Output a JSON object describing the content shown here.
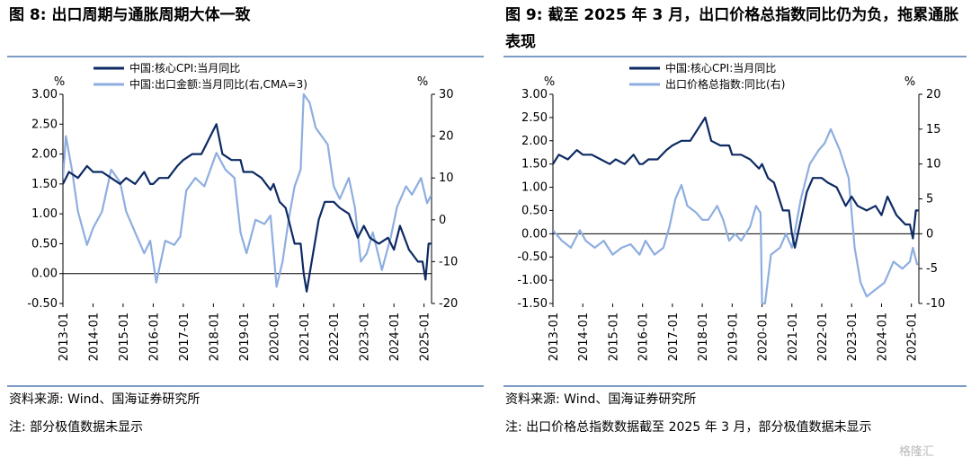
{
  "left": {
    "title": "图 8:  出口周期与通胀周期大体一致",
    "source": "资料来源:  Wind、国海证券研究所",
    "note": "注:  部分极值数据未显示"
  },
  "right": {
    "title": "图 9:  截至 2025 年 3 月，出口价格总指数同比仍为负，拖累通胀表现",
    "source": "资料来源:  Wind、国海证券研究所",
    "note": "注:  出口价格总指数数据截至 2025 年 3 月，部分极值数据未显示"
  },
  "watermark": "格隆汇",
  "colors": {
    "dark": "#0d2a63",
    "light": "#8eaee0",
    "rule": "#7a9cc6"
  },
  "chart_data": [
    {
      "type": "line",
      "x_ticks": [
        "2013-01",
        "2014-01",
        "2015-01",
        "2016-01",
        "2017-01",
        "2018-01",
        "2019-01",
        "2020-01",
        "2021-01",
        "2022-01",
        "2023-01",
        "2024-01",
        "2025-01"
      ],
      "x_range": [
        2013.0,
        2025.25
      ],
      "left_axis": {
        "unit": "%",
        "range": [
          -0.5,
          3.0
        ],
        "ticks": [
          "3.00",
          "2.50",
          "2.00",
          "1.50",
          "1.00",
          "0.50",
          "0.00",
          "-0.50"
        ]
      },
      "right_axis": {
        "unit": "%",
        "range": [
          -20,
          30
        ],
        "ticks": [
          "30",
          "20",
          "10",
          "0",
          "-10",
          "-20"
        ]
      },
      "legend_position": "top",
      "series": [
        {
          "name": "中国:核心CPI:当月同比",
          "axis": "left",
          "color": "#0d2a63",
          "points": [
            [
              2013.0,
              1.5
            ],
            [
              2013.2,
              1.7
            ],
            [
              2013.5,
              1.6
            ],
            [
              2013.8,
              1.8
            ],
            [
              2014.0,
              1.7
            ],
            [
              2014.3,
              1.7
            ],
            [
              2014.6,
              1.6
            ],
            [
              2014.9,
              1.5
            ],
            [
              2015.1,
              1.6
            ],
            [
              2015.4,
              1.5
            ],
            [
              2015.7,
              1.7
            ],
            [
              2015.9,
              1.5
            ],
            [
              2016.0,
              1.5
            ],
            [
              2016.2,
              1.6
            ],
            [
              2016.5,
              1.6
            ],
            [
              2016.8,
              1.8
            ],
            [
              2017.0,
              1.9
            ],
            [
              2017.3,
              2.0
            ],
            [
              2017.6,
              2.0
            ],
            [
              2017.9,
              2.3
            ],
            [
              2018.1,
              2.5
            ],
            [
              2018.3,
              2.0
            ],
            [
              2018.6,
              1.9
            ],
            [
              2018.9,
              1.9
            ],
            [
              2019.0,
              1.7
            ],
            [
              2019.3,
              1.7
            ],
            [
              2019.6,
              1.6
            ],
            [
              2019.9,
              1.4
            ],
            [
              2020.0,
              1.5
            ],
            [
              2020.2,
              1.2
            ],
            [
              2020.4,
              1.1
            ],
            [
              2020.7,
              0.5
            ],
            [
              2020.9,
              0.5
            ],
            [
              2021.0,
              0.0
            ],
            [
              2021.1,
              -0.3
            ],
            [
              2021.3,
              0.3
            ],
            [
              2021.5,
              0.9
            ],
            [
              2021.7,
              1.2
            ],
            [
              2021.9,
              1.2
            ],
            [
              2022.0,
              1.2
            ],
            [
              2022.2,
              1.1
            ],
            [
              2022.5,
              1.0
            ],
            [
              2022.8,
              0.6
            ],
            [
              2023.0,
              0.8
            ],
            [
              2023.2,
              0.6
            ],
            [
              2023.5,
              0.5
            ],
            [
              2023.8,
              0.6
            ],
            [
              2024.0,
              0.4
            ],
            [
              2024.2,
              0.8
            ],
            [
              2024.5,
              0.4
            ],
            [
              2024.8,
              0.2
            ],
            [
              2024.95,
              0.2
            ],
            [
              2025.05,
              -0.1
            ],
            [
              2025.15,
              0.5
            ],
            [
              2025.25,
              0.5
            ]
          ]
        },
        {
          "name": "中国:出口金额:当月同比(右,CMA=3)",
          "axis": "right",
          "color": "#8eaee0",
          "points": [
            [
              2013.0,
              10
            ],
            [
              2013.1,
              20
            ],
            [
              2013.3,
              12
            ],
            [
              2013.5,
              2
            ],
            [
              2013.8,
              -6
            ],
            [
              2014.0,
              -2
            ],
            [
              2014.3,
              2
            ],
            [
              2014.6,
              12
            ],
            [
              2014.9,
              9
            ],
            [
              2015.1,
              2
            ],
            [
              2015.4,
              -3
            ],
            [
              2015.7,
              -8
            ],
            [
              2015.9,
              -5
            ],
            [
              2016.1,
              -15
            ],
            [
              2016.4,
              -5
            ],
            [
              2016.7,
              -6
            ],
            [
              2016.9,
              -4
            ],
            [
              2017.1,
              7
            ],
            [
              2017.4,
              10
            ],
            [
              2017.7,
              8
            ],
            [
              2017.9,
              12
            ],
            [
              2018.1,
              16
            ],
            [
              2018.4,
              12
            ],
            [
              2018.7,
              10
            ],
            [
              2018.9,
              -3
            ],
            [
              2019.1,
              -8
            ],
            [
              2019.4,
              0
            ],
            [
              2019.7,
              -1
            ],
            [
              2019.9,
              1
            ],
            [
              2020.1,
              -16
            ],
            [
              2020.3,
              -10
            ],
            [
              2020.5,
              0
            ],
            [
              2020.7,
              8
            ],
            [
              2020.9,
              12
            ],
            [
              2021.0,
              30
            ],
            [
              2021.2,
              28
            ],
            [
              2021.4,
              22
            ],
            [
              2021.6,
              20
            ],
            [
              2021.8,
              18
            ],
            [
              2022.0,
              8
            ],
            [
              2022.2,
              5
            ],
            [
              2022.5,
              10
            ],
            [
              2022.7,
              3
            ],
            [
              2022.9,
              -10
            ],
            [
              2023.1,
              -8
            ],
            [
              2023.3,
              -3
            ],
            [
              2023.6,
              -12
            ],
            [
              2023.9,
              -4
            ],
            [
              2024.1,
              3
            ],
            [
              2024.4,
              8
            ],
            [
              2024.6,
              6
            ],
            [
              2024.9,
              10
            ],
            [
              2025.1,
              4
            ],
            [
              2025.25,
              6
            ]
          ]
        }
      ]
    },
    {
      "type": "line",
      "x_ticks": [
        "2013-01",
        "2014-01",
        "2015-01",
        "2016-01",
        "2017-01",
        "2018-01",
        "2019-01",
        "2020-01",
        "2021-01",
        "2022-01",
        "2023-01",
        "2024-01",
        "2025-01"
      ],
      "x_range": [
        2013.0,
        2025.25
      ],
      "left_axis": {
        "unit": "%",
        "range": [
          -1.5,
          3.0
        ],
        "ticks": [
          "3.00",
          "2.50",
          "2.00",
          "1.50",
          "1.00",
          "0.50",
          "0.00",
          "-0.50",
          "-1.00",
          "-1.50"
        ]
      },
      "right_axis": {
        "unit": "%",
        "range": [
          -10,
          20
        ],
        "ticks": [
          "20",
          "15",
          "10",
          "5",
          "0",
          "-5",
          "-10"
        ]
      },
      "legend_position": "top",
      "series": [
        {
          "name": "中国:核心CPI:当月同比",
          "axis": "left",
          "color": "#0d2a63",
          "points": [
            [
              2013.0,
              1.5
            ],
            [
              2013.2,
              1.7
            ],
            [
              2013.5,
              1.6
            ],
            [
              2013.8,
              1.8
            ],
            [
              2014.0,
              1.7
            ],
            [
              2014.3,
              1.7
            ],
            [
              2014.6,
              1.6
            ],
            [
              2014.9,
              1.5
            ],
            [
              2015.1,
              1.6
            ],
            [
              2015.4,
              1.5
            ],
            [
              2015.7,
              1.7
            ],
            [
              2015.9,
              1.5
            ],
            [
              2016.0,
              1.5
            ],
            [
              2016.2,
              1.6
            ],
            [
              2016.5,
              1.6
            ],
            [
              2016.8,
              1.8
            ],
            [
              2017.0,
              1.9
            ],
            [
              2017.3,
              2.0
            ],
            [
              2017.6,
              2.0
            ],
            [
              2017.9,
              2.3
            ],
            [
              2018.1,
              2.5
            ],
            [
              2018.3,
              2.0
            ],
            [
              2018.6,
              1.9
            ],
            [
              2018.9,
              1.9
            ],
            [
              2019.0,
              1.7
            ],
            [
              2019.3,
              1.7
            ],
            [
              2019.6,
              1.6
            ],
            [
              2019.9,
              1.4
            ],
            [
              2020.0,
              1.5
            ],
            [
              2020.2,
              1.2
            ],
            [
              2020.4,
              1.1
            ],
            [
              2020.7,
              0.5
            ],
            [
              2020.9,
              0.5
            ],
            [
              2021.0,
              0.0
            ],
            [
              2021.1,
              -0.3
            ],
            [
              2021.3,
              0.3
            ],
            [
              2021.5,
              0.9
            ],
            [
              2021.7,
              1.2
            ],
            [
              2021.9,
              1.2
            ],
            [
              2022.0,
              1.2
            ],
            [
              2022.2,
              1.1
            ],
            [
              2022.5,
              1.0
            ],
            [
              2022.8,
              0.6
            ],
            [
              2023.0,
              0.8
            ],
            [
              2023.2,
              0.6
            ],
            [
              2023.5,
              0.5
            ],
            [
              2023.8,
              0.6
            ],
            [
              2024.0,
              0.4
            ],
            [
              2024.2,
              0.8
            ],
            [
              2024.5,
              0.4
            ],
            [
              2024.8,
              0.2
            ],
            [
              2024.95,
              0.2
            ],
            [
              2025.05,
              -0.1
            ],
            [
              2025.15,
              0.5
            ],
            [
              2025.25,
              0.5
            ]
          ]
        },
        {
          "name": "出口价格总指数:同比(右)",
          "axis": "right",
          "color": "#8eaee0",
          "points": [
            [
              2013.0,
              0.5
            ],
            [
              2013.3,
              -1
            ],
            [
              2013.6,
              -2
            ],
            [
              2013.9,
              0.5
            ],
            [
              2014.1,
              -1
            ],
            [
              2014.4,
              -2
            ],
            [
              2014.7,
              -1
            ],
            [
              2015.0,
              -3
            ],
            [
              2015.3,
              -2
            ],
            [
              2015.6,
              -1.5
            ],
            [
              2015.9,
              -3
            ],
            [
              2016.1,
              -1
            ],
            [
              2016.4,
              -3
            ],
            [
              2016.7,
              -2
            ],
            [
              2016.9,
              1
            ],
            [
              2017.1,
              5
            ],
            [
              2017.3,
              7
            ],
            [
              2017.5,
              4
            ],
            [
              2017.8,
              3
            ],
            [
              2018.0,
              2
            ],
            [
              2018.2,
              2
            ],
            [
              2018.5,
              4
            ],
            [
              2018.7,
              2
            ],
            [
              2018.9,
              -1
            ],
            [
              2019.1,
              0
            ],
            [
              2019.3,
              -1
            ],
            [
              2019.6,
              1
            ],
            [
              2019.8,
              4
            ],
            [
              2019.95,
              3
            ],
            [
              2020.0,
              -10
            ],
            [
              2020.1,
              -10
            ],
            [
              2020.3,
              -3
            ],
            [
              2020.6,
              -2
            ],
            [
              2020.8,
              0
            ],
            [
              2021.0,
              -2
            ],
            [
              2021.3,
              5
            ],
            [
              2021.6,
              10
            ],
            [
              2021.9,
              12
            ],
            [
              2022.1,
              13
            ],
            [
              2022.3,
              15
            ],
            [
              2022.6,
              12
            ],
            [
              2022.9,
              8
            ],
            [
              2023.1,
              -2
            ],
            [
              2023.3,
              -7
            ],
            [
              2023.5,
              -9
            ],
            [
              2023.8,
              -8
            ],
            [
              2024.1,
              -7
            ],
            [
              2024.4,
              -4
            ],
            [
              2024.7,
              -5
            ],
            [
              2024.95,
              -4
            ],
            [
              2025.05,
              -2
            ],
            [
              2025.2,
              -4.5
            ]
          ]
        }
      ]
    }
  ]
}
